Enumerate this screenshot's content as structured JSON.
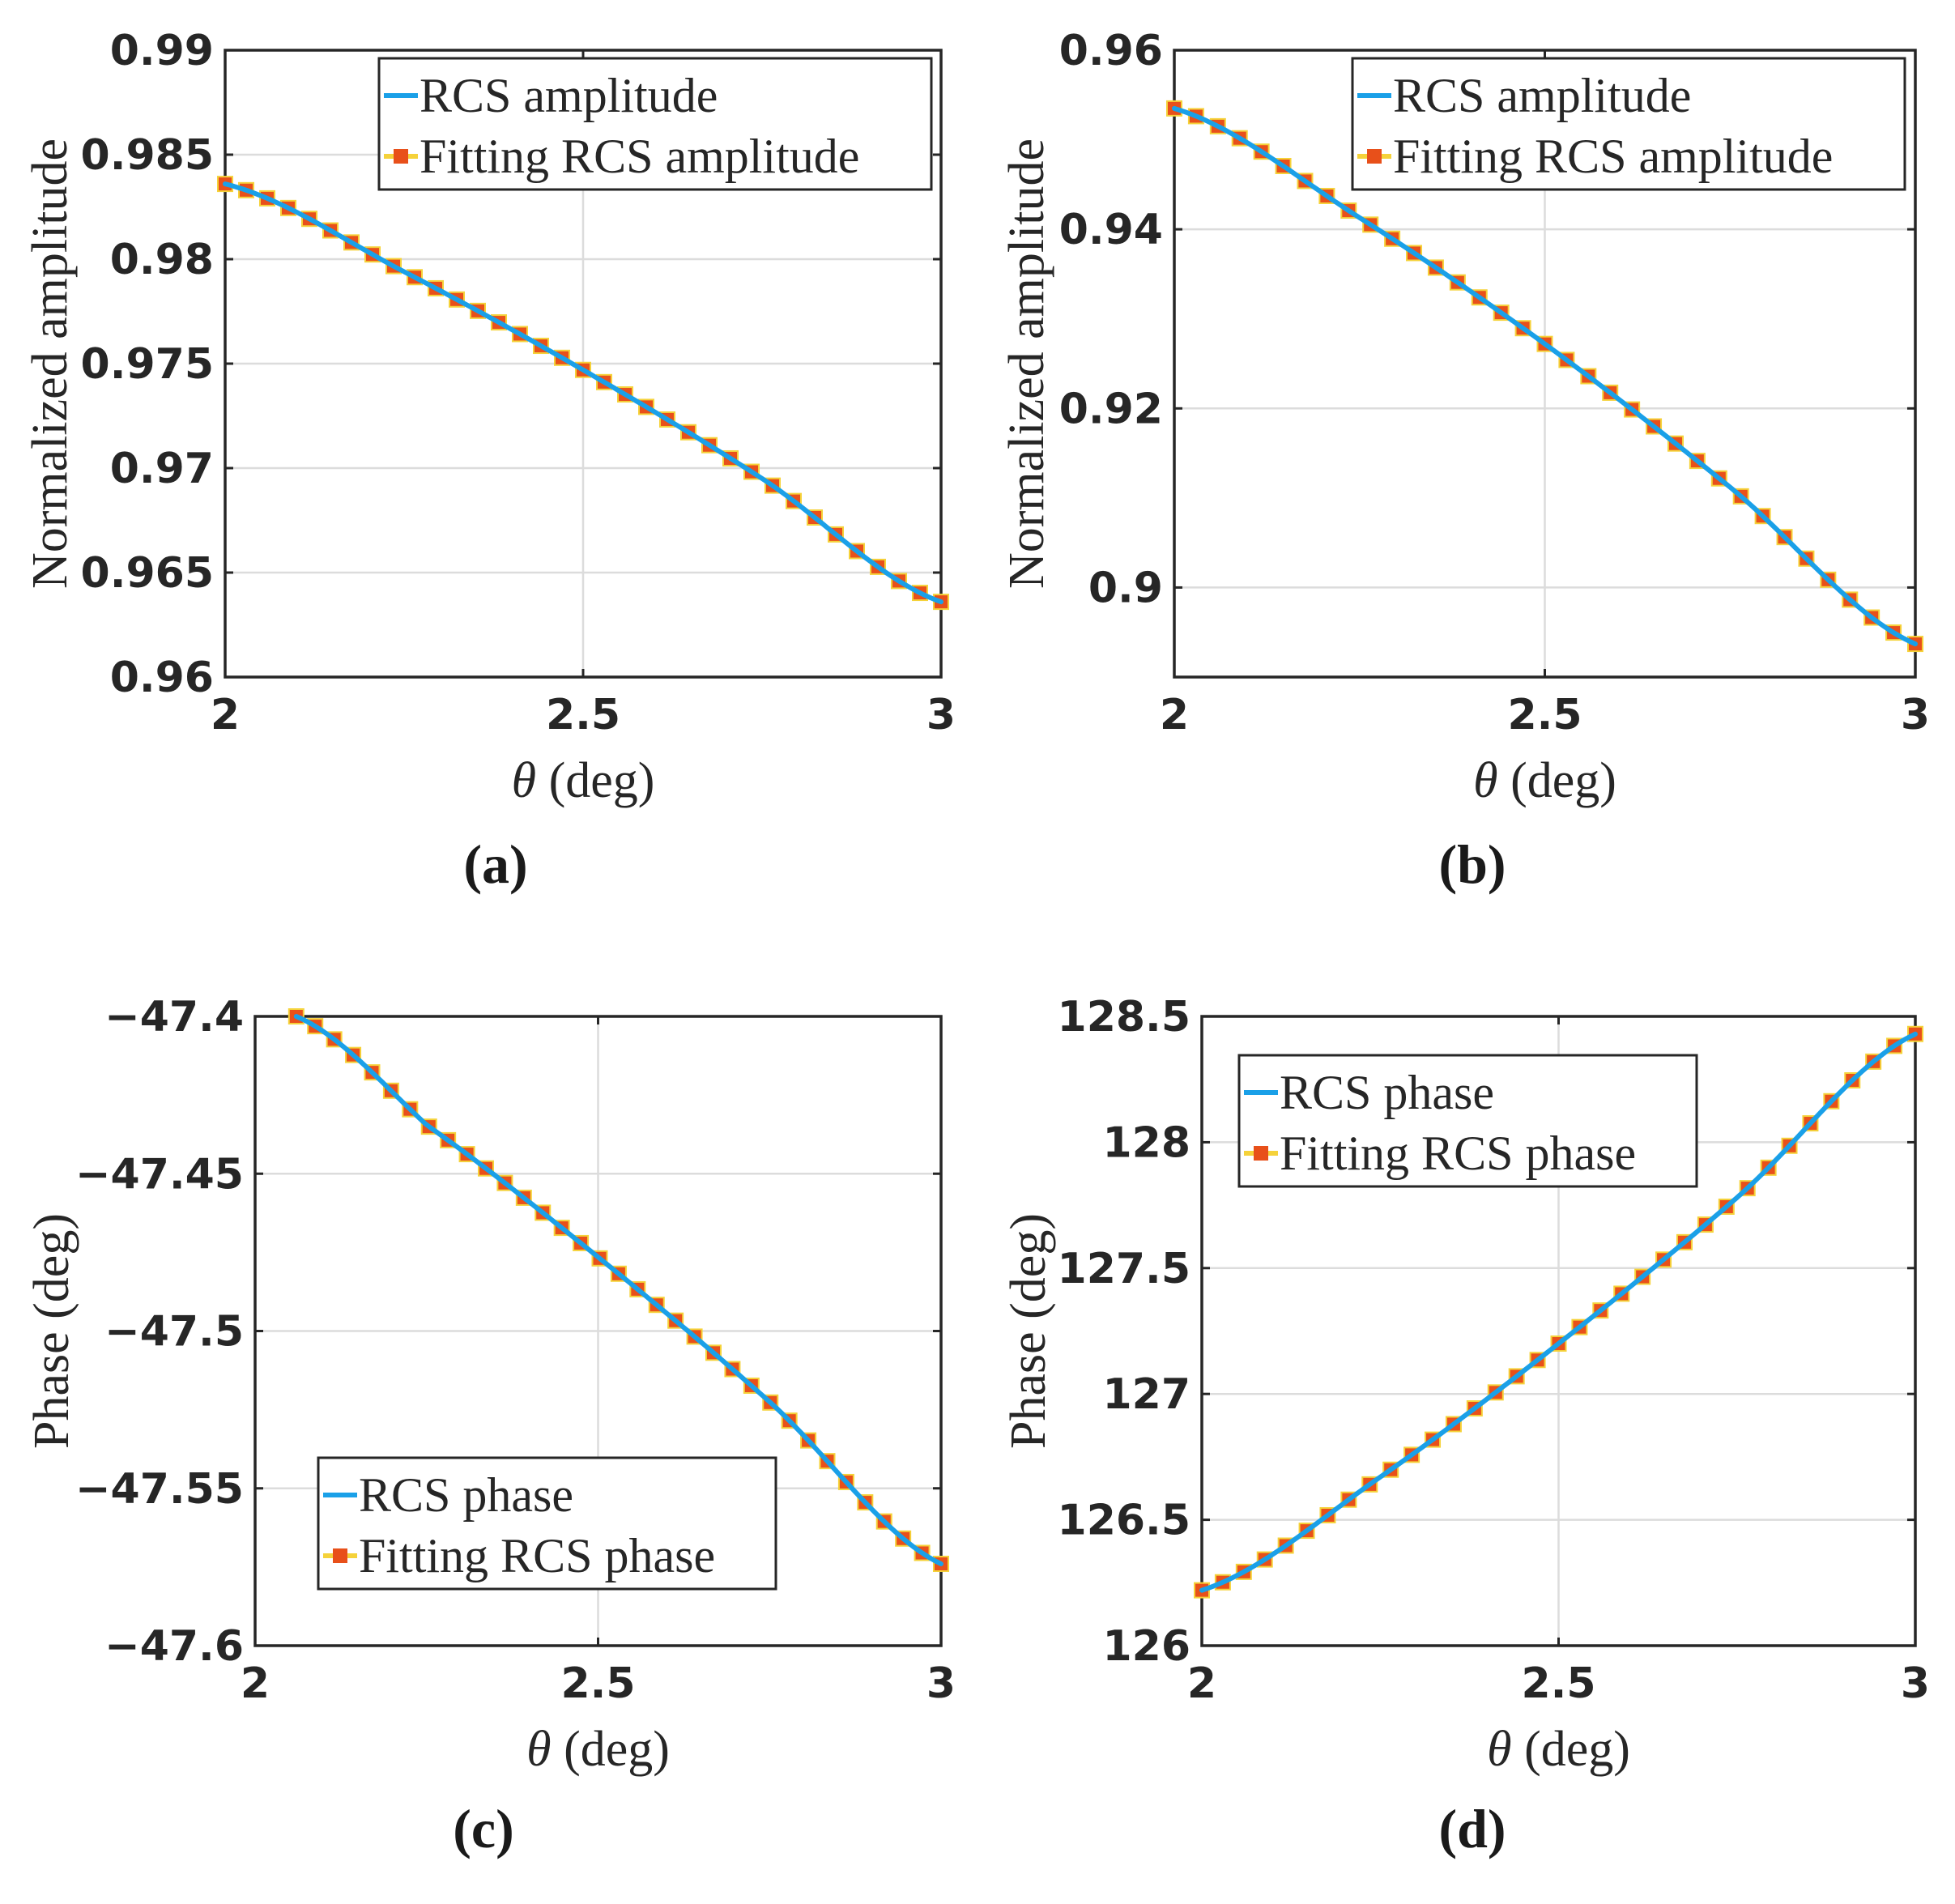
{
  "colors": {
    "line": "#1aa0e8",
    "marker": "#e8501a",
    "marker_edge": "#f5d23a",
    "grid": "#dcdcdc",
    "axis": "#262626"
  },
  "chart_data": [
    {
      "id": "a",
      "panel_label": "(a)",
      "type": "line",
      "xlabel_symbol": "θ",
      "xlabel_unit": " (deg)",
      "ylabel": "Normalized amplitude",
      "xlim": [
        2,
        3
      ],
      "ylim": [
        0.96,
        0.99
      ],
      "xticks": [
        2,
        2.5,
        3
      ],
      "xtick_labels": [
        "2",
        "2.5",
        "3"
      ],
      "yticks": [
        0.96,
        0.965,
        0.97,
        0.975,
        0.98,
        0.985,
        0.99
      ],
      "ytick_labels": [
        "0.96",
        "0.965",
        "0.97",
        "0.975",
        "0.98",
        "0.985",
        "0.99"
      ],
      "grid": true,
      "legend_position": "top-right",
      "series": [
        {
          "name": "RCS amplitude",
          "kind": "line",
          "x": [
            2,
            2.25,
            2.5,
            2.75,
            3
          ],
          "y": [
            0.9836,
            0.9794,
            0.9747,
            0.9695,
            0.9636
          ]
        },
        {
          "name": "Fitting RCS amplitude",
          "kind": "marker",
          "x": [
            2,
            2.25,
            2.5,
            2.75,
            3
          ],
          "y": [
            0.9836,
            0.9794,
            0.9747,
            0.9695,
            0.9636
          ]
        }
      ]
    },
    {
      "id": "b",
      "panel_label": "(b)",
      "type": "line",
      "xlabel_symbol": "θ",
      "xlabel_unit": " (deg)",
      "ylabel": "Normalized amplitude",
      "xlim": [
        2,
        3
      ],
      "ylim": [
        0.89,
        0.96
      ],
      "xticks": [
        2,
        2.5,
        3
      ],
      "xtick_labels": [
        "2",
        "2.5",
        "3"
      ],
      "yticks": [
        0.9,
        0.92,
        0.94,
        0.96
      ],
      "ytick_labels": [
        "0.9",
        "0.92",
        "0.94",
        "0.96"
      ],
      "grid": true,
      "legend_position": "top-right",
      "series": [
        {
          "name": "RCS amplitude",
          "kind": "line",
          "x": [
            2,
            2.25,
            2.5,
            2.75,
            3
          ],
          "y": [
            0.9535,
            0.9413,
            0.9272,
            0.9112,
            0.8937
          ]
        },
        {
          "name": "Fitting RCS amplitude",
          "kind": "marker",
          "x": [
            2,
            2.25,
            2.5,
            2.75,
            3
          ],
          "y": [
            0.9535,
            0.9413,
            0.9272,
            0.9112,
            0.8937
          ]
        }
      ]
    },
    {
      "id": "c",
      "panel_label": "(c)",
      "type": "line",
      "xlabel_symbol": "θ",
      "xlabel_unit": " (deg)",
      "ylabel": "Phase (deg)",
      "xlim": [
        2,
        3
      ],
      "ylim": [
        -47.6,
        -47.4
      ],
      "xticks": [
        2,
        2.5,
        3
      ],
      "xtick_labels": [
        "2",
        "2.5",
        "3"
      ],
      "yticks": [
        -47.6,
        -47.55,
        -47.5,
        -47.45,
        -47.4
      ],
      "ytick_labels": [
        "−47.6",
        "−47.55",
        "−47.5",
        "−47.45",
        "−47.4"
      ],
      "grid": true,
      "legend_position": "bottom-left",
      "series": [
        {
          "name": "RCS phase",
          "kind": "line",
          "x": [
            2.06,
            2.25,
            2.5,
            2.75,
            3
          ],
          "y": [
            -47.4,
            -47.4345,
            -47.4765,
            -47.5225,
            -47.574
          ]
        },
        {
          "name": "Fitting RCS phase",
          "kind": "marker",
          "x": [
            2.06,
            2.25,
            2.5,
            2.75,
            3
          ],
          "y": [
            -47.4,
            -47.4345,
            -47.4765,
            -47.5225,
            -47.574
          ]
        }
      ]
    },
    {
      "id": "d",
      "panel_label": "(d)",
      "type": "line",
      "xlabel_symbol": "θ",
      "xlabel_unit": " (deg)",
      "ylabel": "Phase (deg)",
      "xlim": [
        2,
        3
      ],
      "ylim": [
        126,
        128.5
      ],
      "xticks": [
        2,
        2.5,
        3
      ],
      "xtick_labels": [
        "2",
        "2.5",
        "3"
      ],
      "yticks": [
        126,
        126.5,
        127,
        127.5,
        128,
        128.5
      ],
      "ytick_labels": [
        "126",
        "126.5",
        "127",
        "127.5",
        "128",
        "128.5"
      ],
      "grid": true,
      "legend_position": "top-left",
      "series": [
        {
          "name": "RCS phase",
          "kind": "line",
          "x": [
            2,
            2.25,
            2.5,
            2.75,
            3
          ],
          "y": [
            126.22,
            126.67,
            127.2,
            127.78,
            128.43
          ]
        },
        {
          "name": "Fitting RCS phase",
          "kind": "marker",
          "x": [
            2,
            2.25,
            2.5,
            2.75,
            3
          ],
          "y": [
            126.22,
            126.67,
            127.2,
            127.78,
            128.43
          ]
        }
      ]
    }
  ]
}
